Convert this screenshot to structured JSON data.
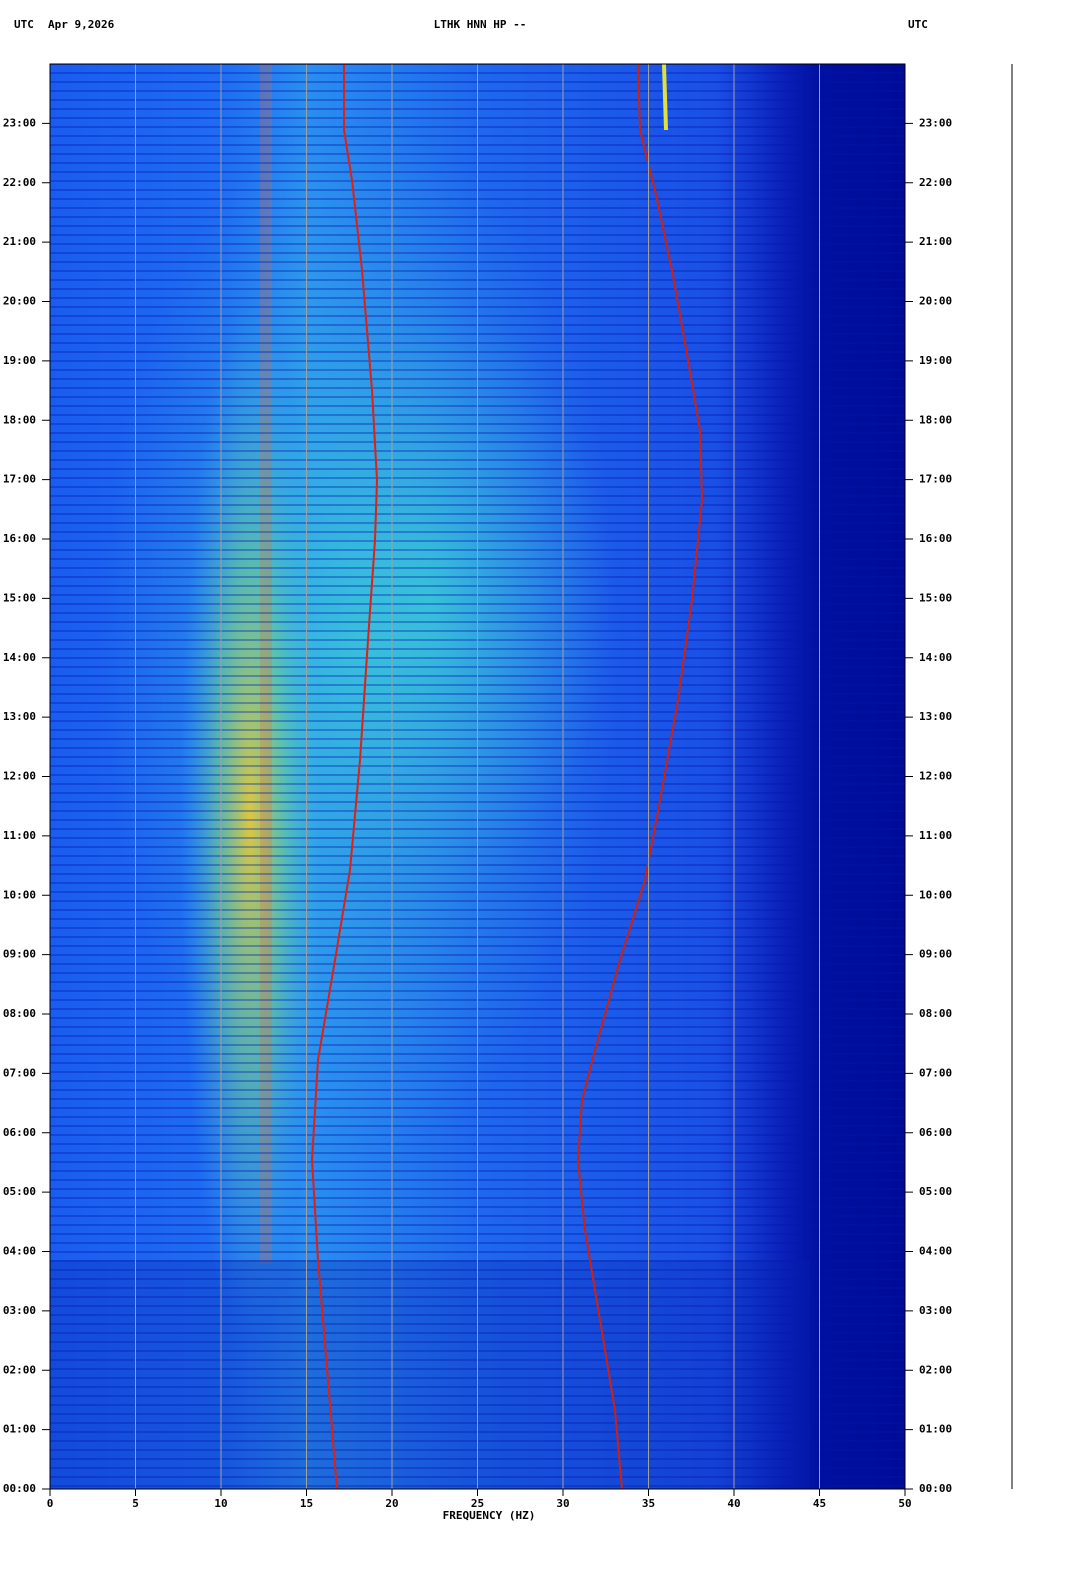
{
  "chart_data": {
    "type": "spectrogram",
    "timezone": "UTC",
    "date": "Apr 9,2026",
    "title": "LTHK HNN HP --",
    "x_label": "FREQUENCY (HZ)",
    "xlim": [
      0,
      50
    ],
    "xticks": [
      0,
      5,
      10,
      15,
      20,
      25,
      30,
      35,
      40,
      45,
      50
    ],
    "ylim": [
      0,
      24
    ],
    "yticks": [
      {
        "value": 0,
        "label": "00:00"
      },
      {
        "value": 1,
        "label": "01:00"
      },
      {
        "value": 2,
        "label": "02:00"
      },
      {
        "value": 3,
        "label": "03:00"
      },
      {
        "value": 4,
        "label": "04:00"
      },
      {
        "value": 5,
        "label": "05:00"
      },
      {
        "value": 6,
        "label": "06:00"
      },
      {
        "value": 7,
        "label": "07:00"
      },
      {
        "value": 8,
        "label": "08:00"
      },
      {
        "value": 9,
        "label": "09:00"
      },
      {
        "value": 10,
        "label": "10:00"
      },
      {
        "value": 11,
        "label": "11:00"
      },
      {
        "value": 12,
        "label": "12:00"
      },
      {
        "value": 13,
        "label": "13:00"
      },
      {
        "value": 14,
        "label": "14:00"
      },
      {
        "value": 15,
        "label": "15:00"
      },
      {
        "value": 16,
        "label": "16:00"
      },
      {
        "value": 17,
        "label": "17:00"
      },
      {
        "value": 18,
        "label": "18:00"
      },
      {
        "value": 19,
        "label": "19:00"
      },
      {
        "value": 20,
        "label": "20:00"
      },
      {
        "value": 21,
        "label": "21:00"
      },
      {
        "value": 22,
        "label": "22:00"
      },
      {
        "value": 23,
        "label": "23:00"
      }
    ],
    "grid": true
  }
}
